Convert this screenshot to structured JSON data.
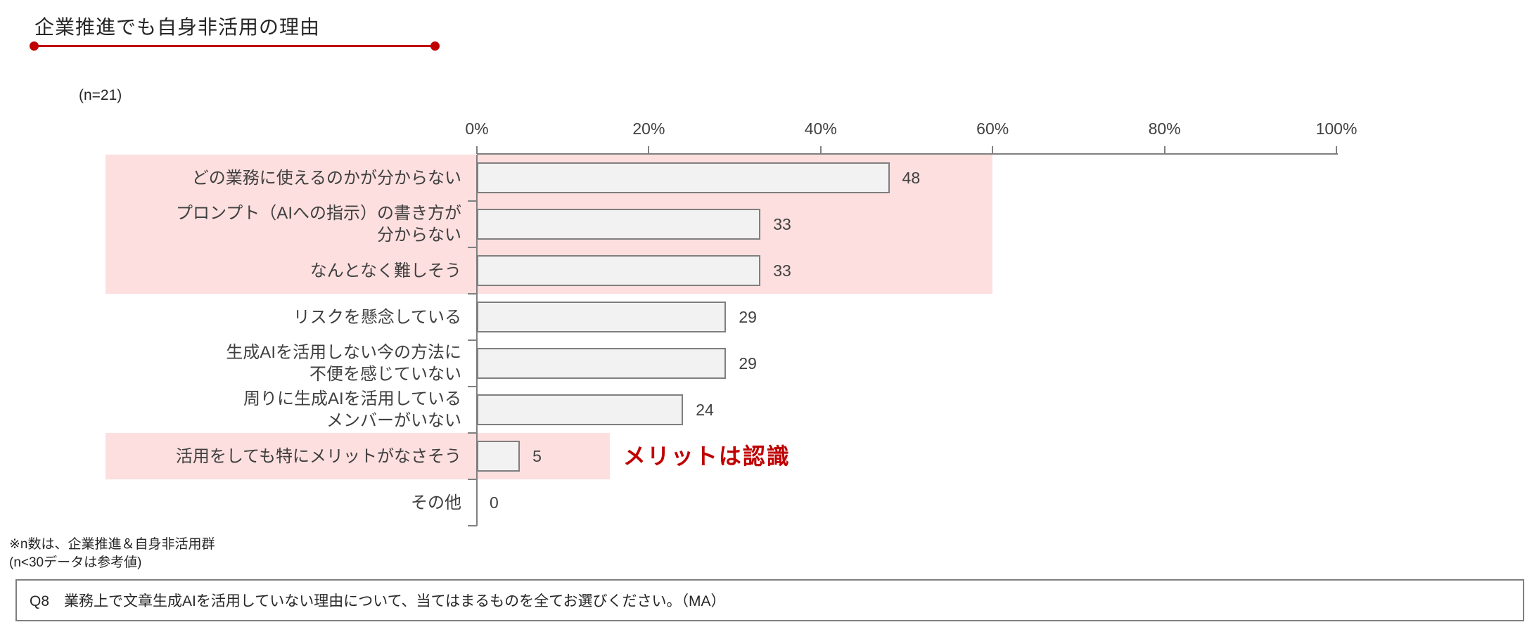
{
  "header": {
    "title": "企業推進でも自身非活用の理由",
    "sample_label": "(n=21)"
  },
  "chart_data": {
    "type": "bar",
    "orientation": "horizontal",
    "title": "企業推進でも自身非活用の理由",
    "sample_size": "n=21",
    "xlim": [
      0,
      100
    ],
    "x_ticks": [
      "0%",
      "20%",
      "40%",
      "60%",
      "80%",
      "100%"
    ],
    "categories": [
      "どの業務に使えるのかが分からない",
      "プロンプト（AIへの指示）の書き方が\n分からない",
      "なんとなく難しそう",
      "リスクを懸念している",
      "生成AIを活用しない今の方法に\n不便を感じていない",
      "周りに生成AIを活用している\nメンバーがいない",
      "活用をしても特にメリットがなさそう",
      "その他"
    ],
    "values": [
      48,
      33,
      33,
      29,
      29,
      24,
      5,
      0
    ],
    "bar_color": "#f2f2f2",
    "bar_border_color": "#7f7f7f",
    "axis_color": "#808080",
    "highlight_color": "#fddfdf",
    "highlights": [
      {
        "row_start": 0,
        "row_end": 2,
        "to_pct": 60
      },
      {
        "row_start": 6,
        "row_end": 6,
        "to_pct": 15.5
      }
    ],
    "annotation": {
      "text": "メリットは認識",
      "color": "#c00000",
      "row": 6,
      "x_pct": 17
    }
  },
  "footnotes": [
    "※n数は、企業推進＆自身非活用群",
    "(n<30データは参考値)"
  ],
  "question_box": {
    "text": "Q8　業務上で文章生成AIを活用していない理由について、当てはまるものを全てお選びください。（MA）"
  },
  "accent": {
    "red": "#c00000"
  }
}
